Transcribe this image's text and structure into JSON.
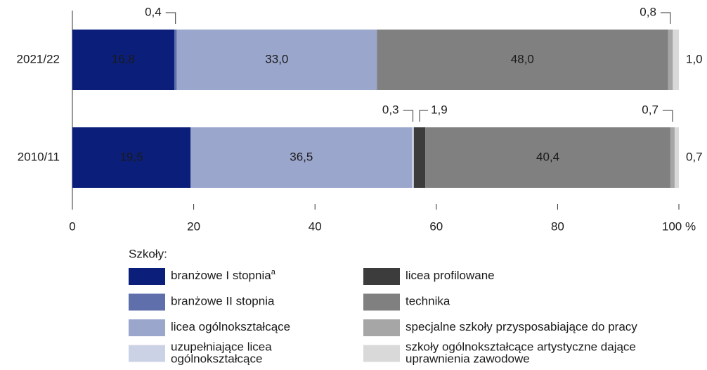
{
  "chart_data": {
    "type": "stacked-bar-horizontal",
    "categories": [
      "2021/22",
      "2010/11"
    ],
    "series": [
      {
        "name": "branżowe I stopnia",
        "name_note": "a",
        "color": "#0b1f7a",
        "values": [
          16.8,
          19.5
        ],
        "value_labels": [
          "16,8",
          "19,5"
        ]
      },
      {
        "name": "branżowe II stopnia",
        "color": "#5f6fab",
        "values": [
          0.4,
          null
        ],
        "value_labels": [
          "0,4",
          null
        ]
      },
      {
        "name": "licea ogólnokształcące",
        "color": "#9aa6cc",
        "values": [
          33.0,
          36.5
        ],
        "value_labels": [
          "33,0",
          "36,5"
        ]
      },
      {
        "name": "uzupełniające licea ogólnokształcące",
        "color": "#ccd2e6",
        "values": [
          null,
          0.3
        ],
        "value_labels": [
          null,
          "0,3"
        ]
      },
      {
        "name": "licea profilowane",
        "color": "#3c3c3c",
        "values": [
          null,
          1.9
        ],
        "value_labels": [
          null,
          "1,9"
        ]
      },
      {
        "name": "technika",
        "color": "#808080",
        "values": [
          48.0,
          40.4
        ],
        "value_labels": [
          "48,0",
          "40,4"
        ]
      },
      {
        "name": "specjalne szkoły przysposabiające do pracy",
        "color": "#a6a6a6",
        "values": [
          0.8,
          0.7
        ],
        "value_labels": [
          "0,8",
          "0,7"
        ]
      },
      {
        "name": "szkoły ogólnokształcące artystyczne dające uprawnienia zawodowe",
        "color": "#d9d9d9",
        "values": [
          1.0,
          0.7
        ],
        "value_labels": [
          "1,0",
          "0,7"
        ]
      }
    ],
    "xlim": [
      0,
      100
    ],
    "xticks": [
      0,
      20,
      40,
      60,
      80,
      {
        "value": 100,
        "label": "100 %"
      }
    ],
    "legend_title": "Szkoły:"
  }
}
